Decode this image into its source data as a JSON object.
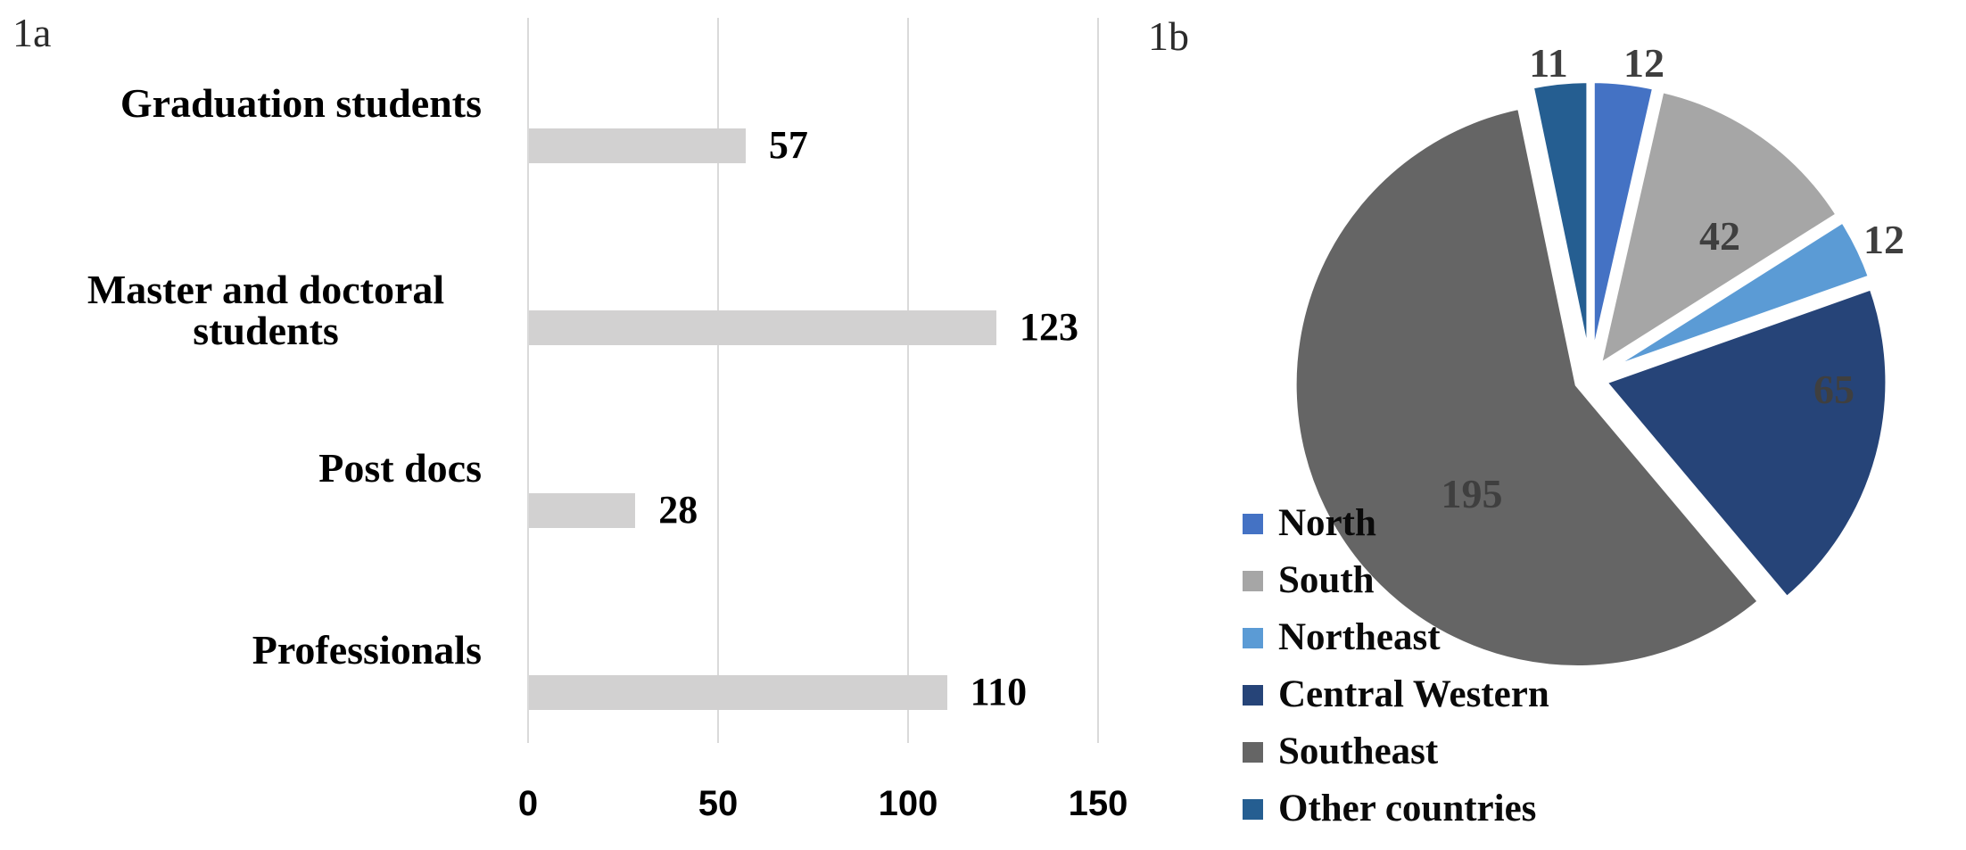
{
  "figure": {
    "panel_a_label": "1a",
    "panel_b_label": "1b"
  },
  "chart_data": [
    {
      "type": "bar",
      "orientation": "horizontal",
      "title": "",
      "xlabel": "",
      "ylabel": "",
      "categories": [
        "Graduation students",
        "Master and doctoral students",
        "Post docs",
        "Professionals"
      ],
      "categories_wrapped": [
        [
          "Graduation students"
        ],
        [
          "Master and doctoral",
          "students"
        ],
        [
          "Post docs"
        ],
        [
          "Professionals"
        ]
      ],
      "values": [
        57,
        123,
        28,
        110
      ],
      "value_labels": [
        "57",
        "123",
        "28",
        "110"
      ],
      "xlim": [
        0,
        150
      ],
      "xticks": [
        "0",
        "50",
        "100",
        "150"
      ],
      "grid": true,
      "legend": false,
      "bar_color": "#d2d1d1",
      "gridline_color": "#dadada"
    },
    {
      "type": "pie",
      "title": "",
      "labels": [
        "North",
        "South",
        "Northeast",
        "Central Western",
        "Southeast",
        "Other countries"
      ],
      "values": [
        12,
        42,
        12,
        65,
        195,
        11
      ],
      "value_labels": [
        "12",
        "42",
        "12",
        "65",
        "195",
        "11"
      ],
      "colors": [
        "#4472C4",
        "#A6A6A6",
        "#5B9BD5",
        "#264478",
        "#656565",
        "#255E91"
      ],
      "start_angle_deg": 0,
      "direction": "clockwise",
      "exploded": true,
      "legend_position": "bottom-left"
    }
  ]
}
